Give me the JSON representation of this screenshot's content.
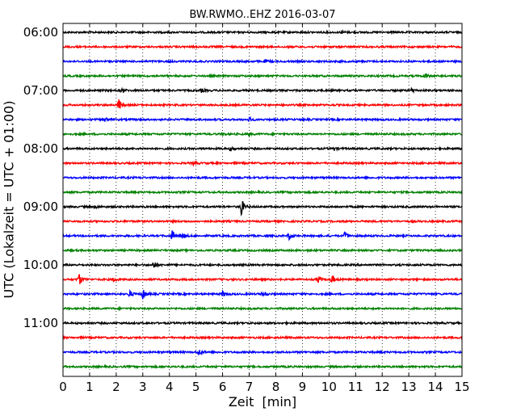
{
  "chart_data": {
    "type": "line",
    "title": "BW.RWMO..EHZ 2016-03-07",
    "xlabel": "Zeit  [min]",
    "ylabel": "UTC (Lokalzeit = UTC + 01:00)",
    "xlim": [
      0,
      15
    ],
    "x_ticks": [
      "0",
      "1",
      "2",
      "3",
      "4",
      "5",
      "6",
      "7",
      "8",
      "9",
      "10",
      "11",
      "12",
      "13",
      "14",
      "15"
    ],
    "y_tick_labels": [
      "06:00",
      "07:00",
      "08:00",
      "09:00",
      "10:00",
      "11:00"
    ],
    "y_tick_trace_index": [
      0,
      4,
      8,
      12,
      16,
      20
    ],
    "grid": "x-dotted",
    "trace_colors": [
      "#000000",
      "#ff0000",
      "#0000ff",
      "#008000"
    ],
    "traces": [
      {
        "start": "06:00",
        "events": [
          [
            10.5,
            0.15
          ]
        ]
      },
      {
        "start": "06:15",
        "events": []
      },
      {
        "start": "06:30",
        "events": [
          [
            7.6,
            0.2
          ]
        ]
      },
      {
        "start": "06:45",
        "events": [
          [
            13.6,
            0.4
          ]
        ]
      },
      {
        "start": "07:00",
        "events": [
          [
            2.2,
            0.3
          ],
          [
            5.2,
            0.25
          ],
          [
            13.1,
            0.35
          ]
        ]
      },
      {
        "start": "07:15",
        "events": [
          [
            2.1,
            0.8
          ]
        ]
      },
      {
        "start": "07:30",
        "events": [
          [
            1.6,
            0.3
          ],
          [
            7.0,
            0.25
          ]
        ]
      },
      {
        "start": "07:45",
        "events": [
          [
            6.0,
            0.2
          ],
          [
            7.0,
            0.2
          ]
        ]
      },
      {
        "start": "08:00",
        "events": [
          [
            6.3,
            0.3
          ],
          [
            10.2,
            0.2
          ]
        ]
      },
      {
        "start": "08:15",
        "events": [
          [
            4.9,
            0.2
          ]
        ]
      },
      {
        "start": "08:30",
        "events": []
      },
      {
        "start": "08:45",
        "events": []
      },
      {
        "start": "09:00",
        "events": [
          [
            6.7,
            1.2
          ],
          [
            1.2,
            0.2
          ]
        ]
      },
      {
        "start": "09:15",
        "events": []
      },
      {
        "start": "09:30",
        "events": [
          [
            4.1,
            0.7
          ],
          [
            4.5,
            0.4
          ],
          [
            8.5,
            0.5
          ],
          [
            10.6,
            0.5
          ]
        ]
      },
      {
        "start": "09:45",
        "events": []
      },
      {
        "start": "10:00",
        "events": [
          [
            3.4,
            0.6
          ]
        ]
      },
      {
        "start": "10:15",
        "events": [
          [
            0.6,
            0.9
          ],
          [
            1.9,
            0.3
          ],
          [
            9.6,
            0.4
          ],
          [
            10.1,
            0.6
          ]
        ]
      },
      {
        "start": "10:30",
        "events": [
          [
            2.5,
            0.5
          ],
          [
            3.0,
            0.8
          ],
          [
            6.0,
            0.4
          ],
          [
            7.5,
            0.3
          ]
        ]
      },
      {
        "start": "10:45",
        "events": []
      },
      {
        "start": "11:00",
        "events": []
      },
      {
        "start": "11:15",
        "events": []
      },
      {
        "start": "11:30",
        "events": [
          [
            5.1,
            0.5
          ]
        ]
      },
      {
        "start": "11:45",
        "events": []
      }
    ]
  }
}
